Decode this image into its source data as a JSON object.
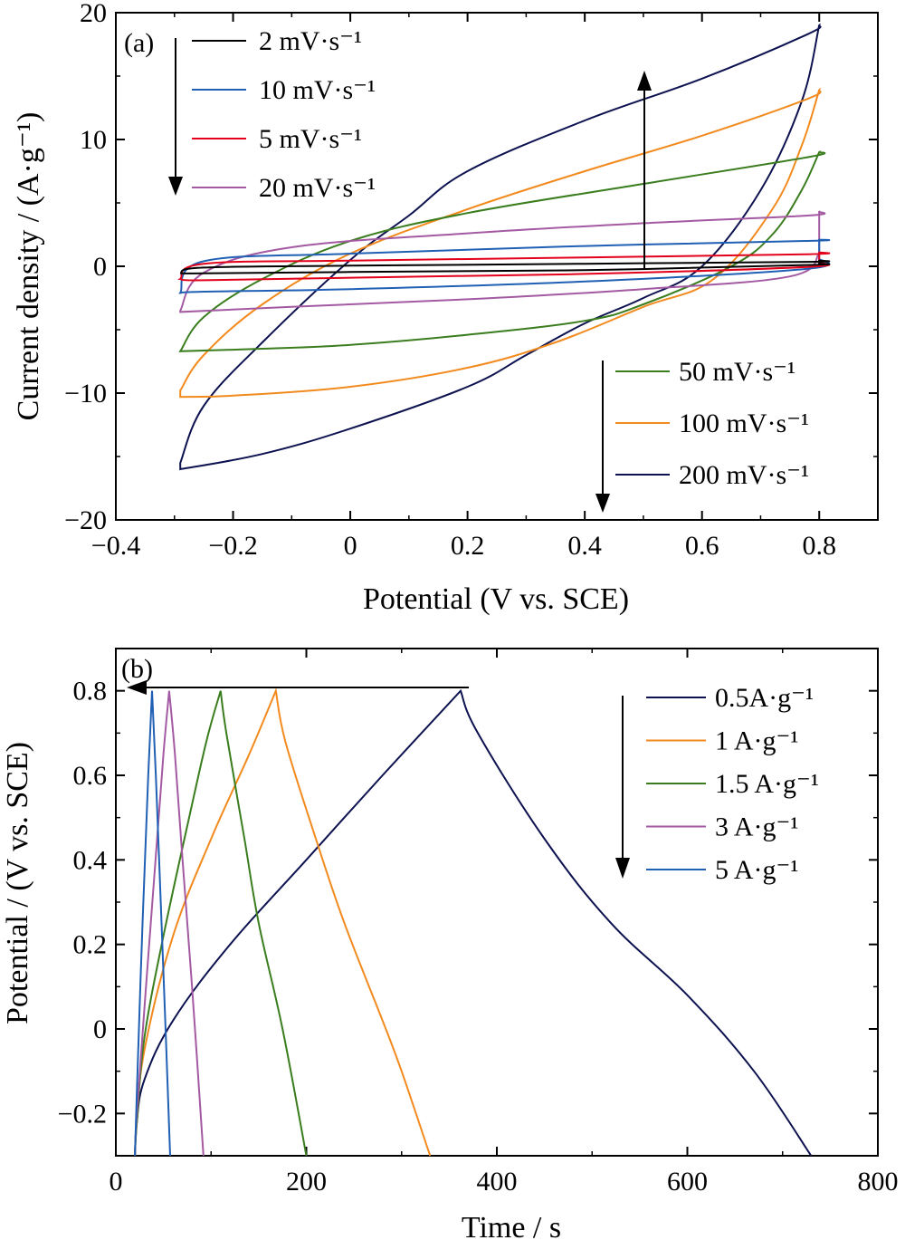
{
  "chart_data": [
    {
      "type": "line",
      "panel": "(a)",
      "xlabel": "Potential (V vs. SCE)",
      "ylabel": "Current density / (A·g⁻¹)",
      "xlim": [
        -0.4,
        0.9
      ],
      "ylim": [
        -20,
        20
      ],
      "xticks": [
        "−0.4",
        "−0.2",
        "0",
        "0.2",
        "0.4",
        "0.6",
        "0.8"
      ],
      "yticks": [
        "−20",
        "−10",
        "0",
        "10",
        "20"
      ],
      "legend_left": [
        {
          "name": "2 mV·s⁻¹",
          "color": "#000000"
        },
        {
          "name": "10 mV·s⁻¹",
          "color": "#1f5fb4"
        },
        {
          "name": "5 mV·s⁻¹",
          "color": "#e3001b"
        },
        {
          "name": "20 mV·s⁻¹",
          "color": "#a35aa3"
        }
      ],
      "legend_right": [
        {
          "name": "50 mV·s⁻¹",
          "color": "#3a7d1e"
        },
        {
          "name": "100 mV·s⁻¹",
          "color": "#f28a1e"
        },
        {
          "name": "200 mV·s⁻¹",
          "color": "#0d1250"
        }
      ],
      "series": [
        {
          "name": "2 mV·s⁻¹",
          "color": "#000000",
          "upper": [
            [
              -0.29,
              -0.55
            ],
            [
              -0.25,
              -0.1
            ],
            [
              0.0,
              0.05
            ],
            [
              0.4,
              0.2
            ],
            [
              0.78,
              0.35
            ],
            [
              0.8,
              0.45
            ]
          ],
          "lower": [
            [
              0.8,
              0.2
            ],
            [
              0.78,
              0.1
            ],
            [
              0.4,
              -0.3
            ],
            [
              0.0,
              -0.45
            ],
            [
              -0.25,
              -0.55
            ],
            [
              -0.29,
              -0.55
            ]
          ]
        },
        {
          "name": "5 mV·s⁻¹",
          "color": "#e3001b",
          "upper": [
            [
              -0.29,
              -1.0
            ],
            [
              -0.25,
              0.2
            ],
            [
              0.0,
              0.45
            ],
            [
              0.4,
              0.7
            ],
            [
              0.78,
              0.95
            ],
            [
              0.8,
              1.1
            ]
          ],
          "lower": [
            [
              0.8,
              0.3
            ],
            [
              0.78,
              -0.05
            ],
            [
              0.4,
              -0.6
            ],
            [
              0.0,
              -0.9
            ],
            [
              -0.25,
              -1.1
            ],
            [
              -0.29,
              -1.0
            ]
          ]
        },
        {
          "name": "10 mV·s⁻¹",
          "color": "#1f5fb4",
          "upper": [
            [
              -0.29,
              -2.1
            ],
            [
              -0.25,
              0.4
            ],
            [
              0.0,
              1.0
            ],
            [
              0.4,
              1.6
            ],
            [
              0.78,
              2.0
            ],
            [
              0.8,
              2.1
            ]
          ],
          "lower": [
            [
              0.8,
              0.6
            ],
            [
              0.78,
              -0.2
            ],
            [
              0.4,
              -1.2
            ],
            [
              0.0,
              -1.8
            ],
            [
              -0.25,
              -2.0
            ],
            [
              -0.29,
              -2.1
            ]
          ]
        },
        {
          "name": "20 mV·s⁻¹",
          "color": "#a35aa3",
          "upper": [
            [
              -0.29,
              -3.5
            ],
            [
              -0.25,
              -0.5
            ],
            [
              -0.1,
              1.5
            ],
            [
              0.2,
              2.6
            ],
            [
              0.5,
              3.4
            ],
            [
              0.78,
              4.0
            ],
            [
              0.8,
              4.3
            ]
          ],
          "lower": [
            [
              0.8,
              1.0
            ],
            [
              0.75,
              -0.8
            ],
            [
              0.5,
              -1.8
            ],
            [
              0.2,
              -2.6
            ],
            [
              -0.1,
              -3.2
            ],
            [
              -0.29,
              -3.6
            ]
          ]
        },
        {
          "name": "50 mV·s⁻¹",
          "color": "#3a7d1e",
          "upper": [
            [
              -0.29,
              -6.7
            ],
            [
              -0.25,
              -4.0
            ],
            [
              -0.15,
              -1.0
            ],
            [
              0.0,
              2.0
            ],
            [
              0.2,
              4.2
            ],
            [
              0.5,
              6.5
            ],
            [
              0.78,
              8.6
            ],
            [
              0.8,
              9.0
            ]
          ],
          "lower": [
            [
              0.8,
              9.0
            ],
            [
              0.77,
              6.0
            ],
            [
              0.72,
              2.5
            ],
            [
              0.65,
              0.0
            ],
            [
              0.5,
              -3.0
            ],
            [
              0.4,
              -4.3
            ],
            [
              0.2,
              -5.4
            ],
            [
              0.0,
              -6.2
            ],
            [
              -0.15,
              -6.5
            ],
            [
              -0.29,
              -6.7
            ]
          ]
        },
        {
          "name": "100 mV·s⁻¹",
          "color": "#f28a1e",
          "upper": [
            [
              -0.29,
              -9.8
            ],
            [
              -0.25,
              -7.0
            ],
            [
              -0.15,
              -3.0
            ],
            [
              0.0,
              1.0
            ],
            [
              0.2,
              4.5
            ],
            [
              0.4,
              7.5
            ],
            [
              0.6,
              10.3
            ],
            [
              0.78,
              13.2
            ],
            [
              0.8,
              13.9
            ]
          ],
          "lower": [
            [
              0.8,
              13.9
            ],
            [
              0.77,
              9.5
            ],
            [
              0.72,
              4.5
            ],
            [
              0.62,
              -1.0
            ],
            [
              0.5,
              -3.2
            ],
            [
              0.35,
              -6.0
            ],
            [
              0.2,
              -8.0
            ],
            [
              0.0,
              -9.5
            ],
            [
              -0.2,
              -10.2
            ],
            [
              -0.29,
              -10.3
            ]
          ]
        },
        {
          "name": "200 mV·s⁻¹",
          "color": "#0d1250",
          "upper": [
            [
              -0.29,
              -15.5
            ],
            [
              -0.25,
              -11.0
            ],
            [
              -0.15,
              -6.0
            ],
            [
              0.0,
              0.5
            ],
            [
              0.1,
              4.0
            ],
            [
              0.2,
              7.5
            ],
            [
              0.4,
              11.5
            ],
            [
              0.6,
              14.8
            ],
            [
              0.78,
              18.3
            ],
            [
              0.8,
              19.0
            ]
          ],
          "lower": [
            [
              0.8,
              19.0
            ],
            [
              0.77,
              13.0
            ],
            [
              0.7,
              6.0
            ],
            [
              0.6,
              0.0
            ],
            [
              0.5,
              -2.5
            ],
            [
              0.4,
              -4.5
            ],
            [
              0.3,
              -7.0
            ],
            [
              0.2,
              -9.5
            ],
            [
              0.0,
              -12.8
            ],
            [
              -0.15,
              -14.8
            ],
            [
              -0.29,
              -16.0
            ]
          ]
        }
      ]
    },
    {
      "type": "line",
      "panel": "(b)",
      "xlabel": "Time / s",
      "ylabel": "Potential / (V vs. SCE)",
      "xlim": [
        0,
        800
      ],
      "ylim": [
        -0.3,
        0.9
      ],
      "xticks": [
        "0",
        "200",
        "400",
        "600",
        "800"
      ],
      "yticks": [
        "−0.2",
        "0",
        "0.2",
        "0.4",
        "0.6",
        "0.8"
      ],
      "legend": [
        {
          "name": "0.5A·g⁻¹",
          "color": "#0d1250"
        },
        {
          "name": "1 A·g⁻¹",
          "color": "#f28a1e"
        },
        {
          "name": "1.5 A·g⁻¹",
          "color": "#3a7d1e"
        },
        {
          "name": "3 A·g⁻¹",
          "color": "#a35aa3"
        },
        {
          "name": "5 A·g⁻¹",
          "color": "#1f5fb4"
        }
      ],
      "series": [
        {
          "name": "0.5A·g⁻¹",
          "color": "#0d1250",
          "points": [
            [
              20,
              -0.3
            ],
            [
              22,
              -0.22
            ],
            [
              30,
              -0.12
            ],
            [
              60,
              0.02
            ],
            [
              120,
              0.2
            ],
            [
              200,
              0.4
            ],
            [
              280,
              0.6
            ],
            [
              362,
              0.8
            ],
            [
              380,
              0.7
            ],
            [
              450,
              0.45
            ],
            [
              520,
              0.25
            ],
            [
              600,
              0.08
            ],
            [
              670,
              -0.1
            ],
            [
              730,
              -0.3
            ]
          ]
        },
        {
          "name": "1 A·g⁻¹",
          "color": "#f28a1e",
          "points": [
            [
              20,
              -0.3
            ],
            [
              22,
              -0.22
            ],
            [
              30,
              -0.05
            ],
            [
              60,
              0.22
            ],
            [
              100,
              0.45
            ],
            [
              140,
              0.65
            ],
            [
              168,
              0.8
            ],
            [
              178,
              0.68
            ],
            [
              210,
              0.45
            ],
            [
              240,
              0.25
            ],
            [
              280,
              0.02
            ],
            [
              300,
              -0.1
            ],
            [
              330,
              -0.3
            ]
          ]
        },
        {
          "name": "1.5 A·g⁻¹",
          "color": "#3a7d1e",
          "points": [
            [
              20,
              -0.3
            ],
            [
              22,
              -0.22
            ],
            [
              30,
              -0.02
            ],
            [
              50,
              0.22
            ],
            [
              75,
              0.48
            ],
            [
              95,
              0.68
            ],
            [
              110,
              0.8
            ],
            [
              116,
              0.7
            ],
            [
              135,
              0.45
            ],
            [
              150,
              0.25
            ],
            [
              175,
              0.0
            ],
            [
              200,
              -0.3
            ]
          ]
        },
        {
          "name": "3 A·g⁻¹",
          "color": "#a35aa3",
          "points": [
            [
              20,
              -0.3
            ],
            [
              22,
              -0.2
            ],
            [
              30,
              0.05
            ],
            [
              40,
              0.35
            ],
            [
              50,
              0.65
            ],
            [
              56,
              0.8
            ],
            [
              62,
              0.65
            ],
            [
              70,
              0.4
            ],
            [
              80,
              0.1
            ],
            [
              92,
              -0.3
            ]
          ]
        },
        {
          "name": "5 A·g⁻¹",
          "color": "#1f5fb4",
          "points": [
            [
              20,
              -0.3
            ],
            [
              22,
              -0.15
            ],
            [
              28,
              0.25
            ],
            [
              34,
              0.6
            ],
            [
              38,
              0.8
            ],
            [
              42,
              0.6
            ],
            [
              48,
              0.25
            ],
            [
              53,
              -0.05
            ],
            [
              57,
              -0.3
            ]
          ]
        }
      ]
    }
  ]
}
